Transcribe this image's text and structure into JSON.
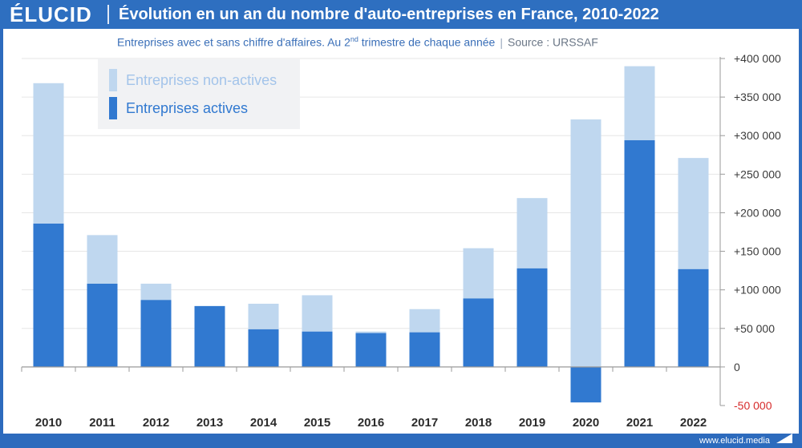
{
  "header": {
    "logo": "ÉLUCID",
    "title": "Évolution en un an du nombre d'auto-entreprises en France, 2010-2022"
  },
  "subtitle": {
    "text_before": "Entreprises avec et sans chiffre d'affaires. Au 2",
    "superscript": "nd",
    "text_after": " trimestre de chaque année",
    "separator": "|",
    "source": "Source : URSSAF"
  },
  "footer": {
    "brand": "www.elucid.media"
  },
  "colors": {
    "active": "#3179d0",
    "non_active": "#bfd7ef",
    "axis_text": "#3b3b3b",
    "negative_tick": "#d62b2b",
    "grid": "#e6e6e6"
  },
  "chart_data": {
    "type": "bar",
    "stacked": true,
    "categories": [
      "2010",
      "2011",
      "2012",
      "2013",
      "2014",
      "2015",
      "2016",
      "2017",
      "2018",
      "2019",
      "2020",
      "2021",
      "2022"
    ],
    "series": [
      {
        "name": "Entreprises actives",
        "values": [
          186000,
          108000,
          87000,
          79000,
          49000,
          46000,
          44000,
          45000,
          89000,
          128000,
          -46000,
          294000,
          127000
        ]
      },
      {
        "name": "Entreprises non-actives",
        "values": [
          182000,
          63000,
          21000,
          0,
          33000,
          47000,
          2000,
          30000,
          65000,
          91000,
          321000,
          96000,
          144000
        ]
      }
    ],
    "legend": [
      "Entreprises non-actives",
      "Entreprises actives"
    ],
    "legend_position": "top-left",
    "ylim": [
      -50000,
      400000
    ],
    "yticks": [
      {
        "value": 400000,
        "label": "+400 000"
      },
      {
        "value": 350000,
        "label": "+350 000"
      },
      {
        "value": 300000,
        "label": "+300 000"
      },
      {
        "value": 250000,
        "label": "+250 000"
      },
      {
        "value": 200000,
        "label": "+200 000"
      },
      {
        "value": 150000,
        "label": "+150 000"
      },
      {
        "value": 100000,
        "label": "+100 000"
      },
      {
        "value": 50000,
        "label": "+50 000"
      },
      {
        "value": 0,
        "label": "0"
      },
      {
        "value": -50000,
        "label": "-50 000"
      }
    ],
    "y_axis_side": "right",
    "grid": true
  }
}
